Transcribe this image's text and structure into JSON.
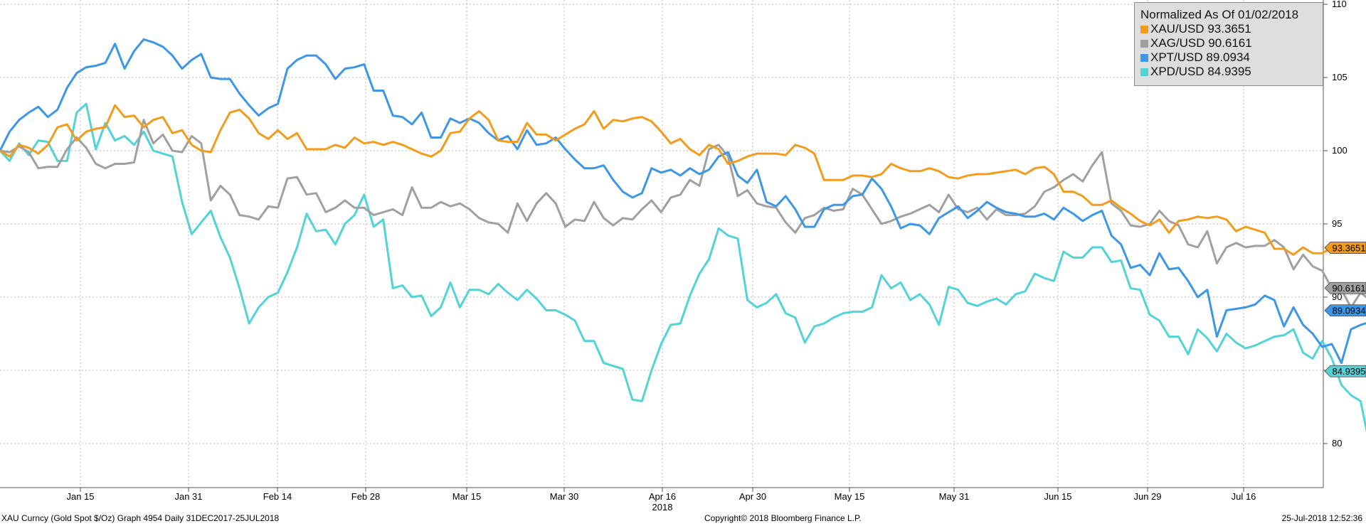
{
  "chart_data": {
    "type": "line",
    "title": "Normalized As Of 01/02/2018",
    "x_ticks": [
      "Jan 15",
      "Jan 31",
      "Feb 14",
      "Feb 28",
      "Mar 15",
      "Mar 30",
      "Apr 16",
      "Apr 30",
      "May 15",
      "May 31",
      "Jun 15",
      "Jun 29",
      "Jul 16"
    ],
    "x_year_label": "2018",
    "y_ticks": [
      80,
      85,
      90,
      95,
      100,
      105,
      110
    ],
    "ylim": [
      77,
      110.5
    ],
    "grid": true,
    "y_axis_side": "right",
    "legend_position": "top-right",
    "series": [
      {
        "name": "XAU/USD",
        "last_value": "93.3651",
        "color": "#f39c1c",
        "values": [
          100,
          99.6,
          100.4,
          100.2,
          99.8,
          100.4,
          101.6,
          101.8,
          100.7,
          101.3,
          101.5,
          101.6,
          103.1,
          102.3,
          102.4,
          101.6,
          102.1,
          102.3,
          101.2,
          101.4,
          100.4,
          100.0,
          99.9,
          101.4,
          102.6,
          102.8,
          102.2,
          101.2,
          100.8,
          101.4,
          100.8,
          101.2,
          100.1,
          100.1,
          100.1,
          100.4,
          100.2,
          100.9,
          100.5,
          100.6,
          100.4,
          100.6,
          100.4,
          100.1,
          99.8,
          99.6,
          100.0,
          101.2,
          101.3,
          102.2,
          102.7,
          102.1,
          100.7,
          100.6,
          100.6,
          101.9,
          101.1,
          101.1,
          100.7,
          101.1,
          101.5,
          101.8,
          102.7,
          101.5,
          102.1,
          102.0,
          102.2,
          102.3,
          102.0,
          101.3,
          100.5,
          100.8,
          100.1,
          99.7,
          100.4,
          100.1,
          99.1,
          99.3,
          99.6,
          99.8,
          99.8,
          99.8,
          99.7,
          100.4,
          100.2,
          99.8,
          98.0,
          98.0,
          98.0,
          98.3,
          98.3,
          98.2,
          98.4,
          99.1,
          98.8,
          98.6,
          98.6,
          98.8,
          98.6,
          98.2,
          98.1,
          98.3,
          98.4,
          98.4,
          98.5,
          98.6,
          98.7,
          98.4,
          98.8,
          98.9,
          98.4,
          97.2,
          97.2,
          96.9,
          96.3,
          96.3,
          96.6,
          96.1,
          95.7,
          95.2,
          94.9,
          95.3,
          94.4,
          95.2,
          95.3,
          95.5,
          95.4,
          95.5,
          95.3,
          94.5,
          94.8,
          94.6,
          94.4,
          93.3,
          93.3,
          92.9,
          93.4,
          93.0,
          93.0,
          93.37
        ]
      },
      {
        "name": "XAG/USD",
        "last_value": "90.6161",
        "color": "#a0a0a0",
        "values": [
          100,
          99.9,
          100.3,
          99.9,
          98.8,
          98.9,
          98.9,
          100.1,
          100.9,
          100.2,
          99.1,
          98.8,
          99.1,
          99.1,
          99.2,
          102.1,
          100.5,
          101.1,
          100.0,
          99.9,
          101.0,
          100.5,
          96.6,
          97.6,
          97.0,
          95.6,
          95.5,
          95.3,
          96.2,
          96.1,
          98.1,
          98.2,
          97.0,
          97.1,
          95.8,
          96.1,
          96.6,
          96.1,
          96.1,
          95.6,
          95.8,
          96.0,
          95.6,
          97.5,
          96.1,
          96.1,
          96.5,
          96.2,
          96.4,
          96.0,
          95.4,
          95.1,
          95.0,
          94.4,
          96.4,
          95.2,
          96.4,
          97.1,
          96.4,
          94.8,
          95.3,
          95.2,
          96.5,
          95.4,
          94.9,
          95.4,
          95.3,
          96.0,
          96.6,
          95.8,
          96.8,
          97.0,
          98.0,
          97.6,
          100.1,
          100.4,
          99.6,
          96.9,
          97.3,
          96.4,
          96.2,
          96.1,
          95.1,
          94.4,
          95.4,
          95.6,
          96.1,
          95.9,
          96.0,
          97.4,
          97.0,
          96.0,
          95.0,
          95.2,
          95.5,
          95.7,
          96.0,
          96.3,
          95.8,
          97.0,
          96.0,
          95.8,
          96.1,
          95.3,
          96.0,
          95.6,
          95.6,
          95.7,
          96.2,
          97.2,
          97.5,
          98.0,
          98.4,
          97.9,
          99.0,
          99.9,
          96.4,
          95.9,
          94.9,
          94.8,
          95.0,
          95.9,
          95.2,
          94.9,
          93.6,
          93.4,
          94.5,
          92.3,
          93.4,
          93.7,
          93.4,
          93.5,
          93.5,
          93.9,
          93.4,
          91.9,
          92.9,
          92.1,
          91.8,
          90.6,
          90.5,
          89.3,
          90.3,
          89.8,
          90.1,
          90.62
        ]
      },
      {
        "name": "XPT/USD",
        "last_value": "89.0934",
        "color": "#3d96e6",
        "values": [
          100,
          101.3,
          102.1,
          102.6,
          103.0,
          102.3,
          102.8,
          104.3,
          105.3,
          105.7,
          105.8,
          106.0,
          107.3,
          105.6,
          106.8,
          107.6,
          107.4,
          107.1,
          106.5,
          105.6,
          106.2,
          106.6,
          105.0,
          104.9,
          104.9,
          103.9,
          103.1,
          102.4,
          102.9,
          103.2,
          105.6,
          106.2,
          106.5,
          106.5,
          105.9,
          104.9,
          105.6,
          105.7,
          105.9,
          104.1,
          104.1,
          102.4,
          102.3,
          101.8,
          102.6,
          100.9,
          100.9,
          102.2,
          101.9,
          102.2,
          101.9,
          101.2,
          100.7,
          101.0,
          100.1,
          101.4,
          100.4,
          100.5,
          100.9,
          100.1,
          99.4,
          98.8,
          98.8,
          99.0,
          98.0,
          97.2,
          96.8,
          97.1,
          98.8,
          98.5,
          98.7,
          98.3,
          98.8,
          98.4,
          98.7,
          99.6,
          99.9,
          98.3,
          97.8,
          98.7,
          96.5,
          96.2,
          96.9,
          96.0,
          94.8,
          94.8,
          96.0,
          96.3,
          96.3,
          96.9,
          97.0,
          98.1,
          97.4,
          96.2,
          94.7,
          95.0,
          94.9,
          94.3,
          95.4,
          95.8,
          96.2,
          95.4,
          95.9,
          96.5,
          96.1,
          95.8,
          95.7,
          95.5,
          95.5,
          95.7,
          95.3,
          96.1,
          95.7,
          95.2,
          95.6,
          95.9,
          94.2,
          93.6,
          92.0,
          92.2,
          91.5,
          93.0,
          91.9,
          92.0,
          91.1,
          90.0,
          90.5,
          87.3,
          89.1,
          89.2,
          89.3,
          89.5,
          90.1,
          89.8,
          88.0,
          89.3,
          88.1,
          87.5,
          86.6,
          86.8,
          85.5,
          87.8,
          88.1,
          88.3,
          89.09
        ]
      },
      {
        "name": "XPD/USD",
        "last_value": "84.9395",
        "color": "#52d3d8",
        "values": [
          100,
          99.3,
          100.5,
          99.7,
          100.7,
          100.6,
          99.3,
          99.3,
          102.6,
          103.2,
          100.1,
          101.9,
          100.7,
          101.0,
          100.4,
          101.3,
          100.0,
          99.8,
          99.6,
          96.5,
          94.3,
          95.1,
          95.9,
          94.1,
          92.7,
          90.6,
          88.2,
          89.3,
          90.0,
          90.3,
          91.7,
          93.4,
          95.7,
          94.5,
          94.6,
          93.6,
          95.0,
          95.6,
          97.0,
          94.8,
          95.3,
          90.6,
          90.8,
          90.0,
          90.1,
          88.7,
          89.3,
          91.0,
          89.3,
          90.5,
          90.5,
          90.2,
          90.9,
          90.3,
          89.8,
          90.5,
          89.9,
          89.1,
          89.1,
          88.8,
          88.4,
          87.0,
          87.0,
          85.5,
          85.3,
          85.1,
          83.0,
          82.9,
          85.0,
          86.8,
          88.1,
          88.2,
          90.1,
          91.6,
          92.6,
          94.7,
          94.2,
          94.0,
          89.8,
          89.3,
          89.6,
          90.2,
          88.9,
          88.6,
          86.9,
          88.0,
          88.2,
          88.6,
          88.9,
          89.0,
          89.0,
          89.3,
          91.5,
          90.6,
          91.0,
          89.8,
          90.2,
          89.5,
          88.1,
          90.7,
          90.5,
          89.6,
          89.4,
          89.7,
          89.9,
          89.5,
          90.2,
          90.4,
          91.6,
          91.3,
          91.1,
          93.1,
          92.7,
          92.7,
          93.4,
          93.4,
          92.4,
          92.5,
          90.6,
          90.5,
          88.8,
          88.4,
          87.3,
          87.3,
          86.1,
          87.8,
          87.2,
          86.3,
          87.5,
          86.9,
          86.5,
          86.7,
          87.0,
          87.3,
          87.4,
          87.8,
          86.2,
          85.8,
          87.0,
          85.8,
          84.0,
          83.3,
          82.9,
          79.7,
          81.9,
          83.5,
          83.5,
          84.94
        ]
      }
    ]
  },
  "footer": {
    "left": "XAU Curncy (Gold Spot   $/Oz) Graph 4954  Daily 31DEC2017-25JUL2018",
    "center": "Copyright© 2018 Bloomberg Finance L.P.",
    "right": "25-Jul-2018 12:52:36"
  }
}
